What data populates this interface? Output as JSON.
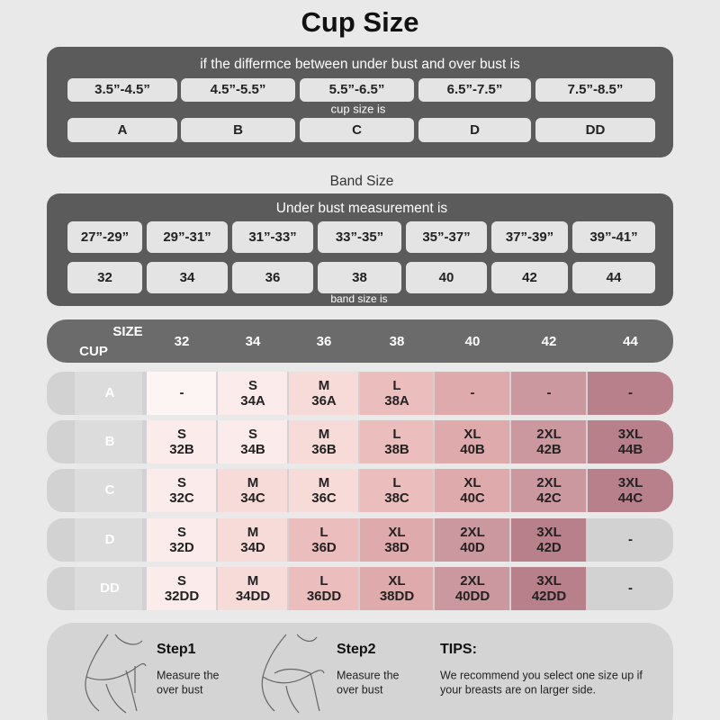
{
  "title": "Cup Size",
  "cup_panel": {
    "heading": "if the differmce between under bust and over bust is",
    "differences": [
      "3.5”-4.5”",
      "4.5”-5.5”",
      "5.5”-6.5”",
      "6.5”-7.5”",
      "7.5”-8.5”"
    ],
    "caption": "cup size is",
    "cups": [
      "A",
      "B",
      "C",
      "D",
      "DD"
    ]
  },
  "band_section": {
    "title": "Band Size",
    "heading": "Under bust measurement is",
    "measurements": [
      "27”-29”",
      "29”-31”",
      "31”-33”",
      "33”-35”",
      "35”-37”",
      "37”-39”",
      "39”-41”"
    ],
    "caption": "band size is",
    "bands": [
      "32",
      "34",
      "36",
      "38",
      "40",
      "42",
      "44"
    ]
  },
  "size_table": {
    "corner_top": "SIZE",
    "corner_bottom": "CUP",
    "columns": [
      "32",
      "34",
      "36",
      "38",
      "40",
      "42",
      "44"
    ],
    "rows": [
      {
        "cup": "A",
        "cells": [
          [
            "-"
          ],
          [
            "S",
            "34A"
          ],
          [
            "M",
            "36A"
          ],
          [
            "L",
            "38A"
          ],
          [
            "-"
          ],
          [
            "-"
          ],
          [
            "-"
          ]
        ]
      },
      {
        "cup": "B",
        "cells": [
          [
            "S",
            "32B"
          ],
          [
            "S",
            "34B"
          ],
          [
            "M",
            "36B"
          ],
          [
            "L",
            "38B"
          ],
          [
            "XL",
            "40B"
          ],
          [
            "2XL",
            "42B"
          ],
          [
            "3XL",
            "44B"
          ]
        ]
      },
      {
        "cup": "C",
        "cells": [
          [
            "S",
            "32C"
          ],
          [
            "M",
            "34C"
          ],
          [
            "M",
            "36C"
          ],
          [
            "L",
            "38C"
          ],
          [
            "XL",
            "40C"
          ],
          [
            "2XL",
            "42C"
          ],
          [
            "3XL",
            "44C"
          ]
        ]
      },
      {
        "cup": "D",
        "cells": [
          [
            "S",
            "32D"
          ],
          [
            "M",
            "34D"
          ],
          [
            "L",
            "36D"
          ],
          [
            "XL",
            "38D"
          ],
          [
            "2XL",
            "40D"
          ],
          [
            "3XL",
            "42D"
          ],
          [
            "-"
          ]
        ]
      },
      {
        "cup": "DD",
        "cells": [
          [
            "S",
            "32DD"
          ],
          [
            "M",
            "34DD"
          ],
          [
            "L",
            "36DD"
          ],
          [
            "XL",
            "38DD"
          ],
          [
            "2XL",
            "40DD"
          ],
          [
            "3XL",
            "42DD"
          ],
          [
            "-"
          ]
        ]
      }
    ]
  },
  "steps": [
    {
      "title": "Step1",
      "text": [
        "Measure the",
        "over bust"
      ]
    },
    {
      "title": "Step2",
      "text": [
        "Measure the",
        "over bust"
      ]
    }
  ],
  "tips": {
    "title": "TIPS:",
    "text": [
      "We recommend you select one size up if",
      "your breasts are on larger side."
    ]
  }
}
